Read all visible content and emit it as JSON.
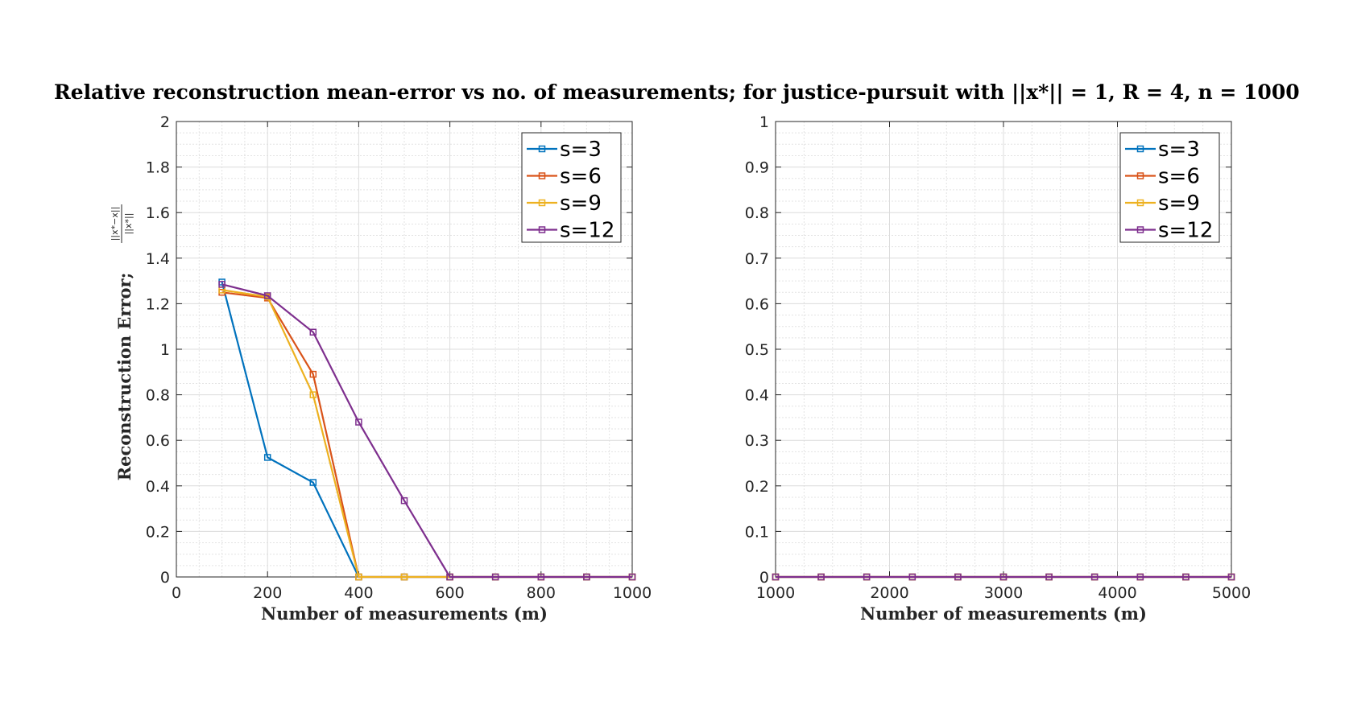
{
  "figure": {
    "title_main": "Relative reconstruction mean-error vs no. of measurements; for justice-pursuit with ",
    "title_math": "||x*|| = 1, R = 4, n = 1000"
  },
  "chart_data": [
    {
      "type": "line",
      "title": "",
      "xlabel": "Number of measurements (m)",
      "ylabel": "Reconstruction Error;",
      "ylabel_fraction": {
        "numerator": "||x*−x||",
        "denominator": "||x*||"
      },
      "xlim": [
        0,
        1000
      ],
      "ylim": [
        0,
        2
      ],
      "xticks": [
        0,
        200,
        400,
        600,
        800,
        1000
      ],
      "yticks": [
        0,
        0.2,
        0.4,
        0.6,
        0.8,
        1,
        1.2,
        1.4,
        1.6,
        1.8,
        2
      ],
      "ytick_labels": [
        "0",
        "0.2",
        "0.4",
        "0.6",
        "0.8",
        "1",
        "1.2",
        "1.4",
        "1.6",
        "1.8",
        "2"
      ],
      "grid": true,
      "minor_grid": true,
      "legend_position": "top-right",
      "x": [
        100,
        200,
        300,
        400,
        500,
        600,
        700,
        800,
        900,
        1000
      ],
      "series": [
        {
          "name": "s=3",
          "color": "#0072BD",
          "values": [
            1.295,
            0.525,
            0.415,
            0,
            0,
            0,
            0,
            0,
            0,
            0
          ]
        },
        {
          "name": "s=6",
          "color": "#D95319",
          "values": [
            1.25,
            1.225,
            0.89,
            0,
            0,
            0,
            0,
            0,
            0,
            0
          ]
        },
        {
          "name": "s=9",
          "color": "#EDB120",
          "values": [
            1.26,
            1.23,
            0.8,
            0,
            0,
            0,
            0,
            0,
            0,
            0
          ]
        },
        {
          "name": "s=12",
          "color": "#7E2F8E",
          "values": [
            1.285,
            1.235,
            1.075,
            0.68,
            0.335,
            0,
            0,
            0,
            0,
            0
          ]
        }
      ]
    },
    {
      "type": "line",
      "title": "",
      "xlabel": "Number of measurements (m)",
      "ylabel": "",
      "xlim": [
        1000,
        5000
      ],
      "ylim": [
        0,
        1
      ],
      "xticks": [
        1000,
        2000,
        3000,
        4000,
        5000
      ],
      "yticks": [
        0,
        0.1,
        0.2,
        0.3,
        0.4,
        0.5,
        0.6,
        0.7,
        0.8,
        0.9,
        1
      ],
      "ytick_labels": [
        "0",
        "0.1",
        "0.2",
        "0.3",
        "0.4",
        "0.5",
        "0.6",
        "0.7",
        "0.8",
        "0.9",
        "1"
      ],
      "grid": true,
      "minor_grid": true,
      "legend_position": "top-right",
      "x": [
        1000,
        1400,
        1800,
        2200,
        2600,
        3000,
        3400,
        3800,
        4200,
        4600,
        5000
      ],
      "series": [
        {
          "name": "s=3",
          "color": "#0072BD",
          "values": [
            0,
            0,
            0,
            0,
            0,
            0,
            0,
            0,
            0,
            0,
            0
          ]
        },
        {
          "name": "s=6",
          "color": "#D95319",
          "values": [
            0,
            0,
            0,
            0,
            0,
            0,
            0,
            0,
            0,
            0,
            0
          ]
        },
        {
          "name": "s=9",
          "color": "#EDB120",
          "values": [
            0,
            0,
            0,
            0,
            0,
            0,
            0,
            0,
            0,
            0,
            0
          ]
        },
        {
          "name": "s=12",
          "color": "#7E2F8E",
          "values": [
            0,
            0,
            0,
            0,
            0,
            0,
            0,
            0,
            0,
            0,
            0
          ]
        }
      ]
    }
  ]
}
